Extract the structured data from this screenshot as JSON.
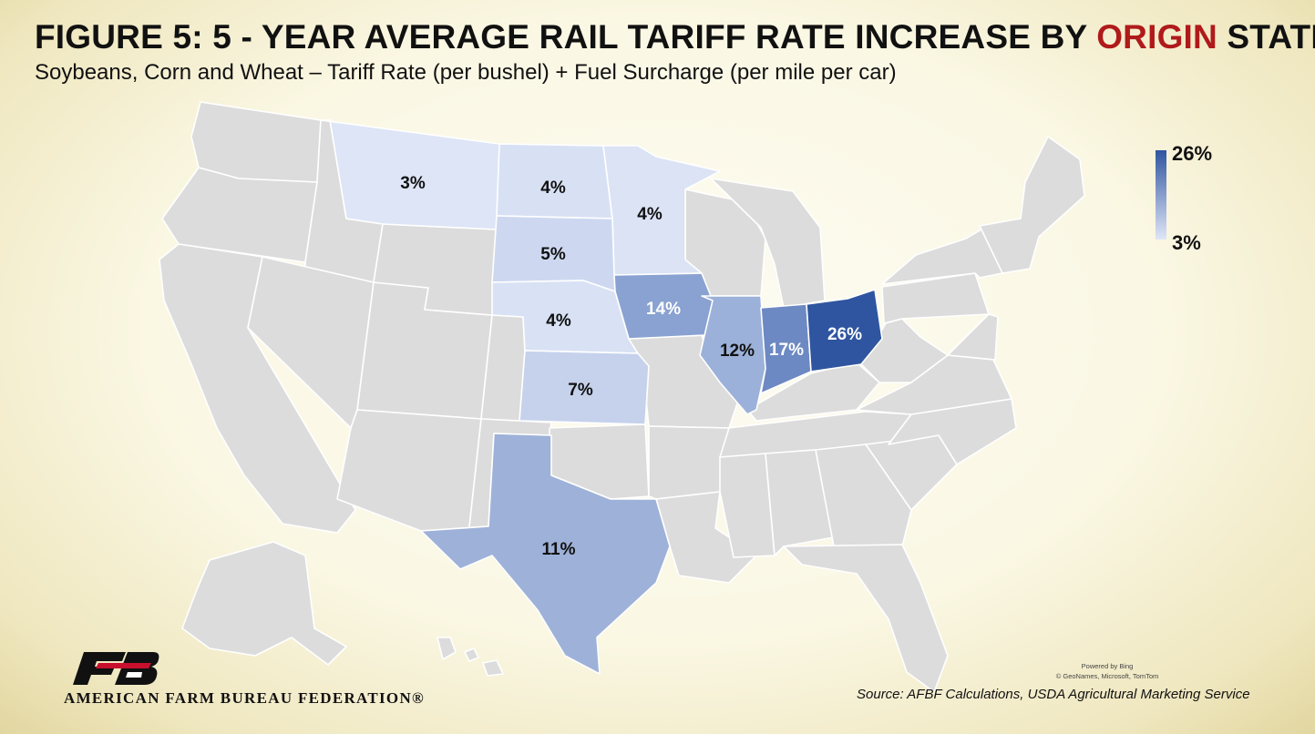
{
  "title": {
    "prefix": "FIGURE 5: 5 - YEAR AVERAGE RAIL TARIFF RATE INCREASE BY ",
    "highlight": "ORIGIN",
    "suffix": " STATE"
  },
  "subtitle": "Soybeans, Corn and Wheat – Tariff Rate (per bushel) + Fuel Surcharge (per mile per car)",
  "legend": {
    "max_label": "26%",
    "min_label": "3%",
    "max_color": "#2f55a0",
    "min_color": "#dfe6f7"
  },
  "colors": {
    "no_data": "#dcdcdc",
    "border": "#ffffff",
    "highlight_title": "#b01a1a"
  },
  "states": [
    {
      "id": "MT",
      "value": 3,
      "label": "3%",
      "color": "#dde5f6",
      "label_color": "#111111"
    },
    {
      "id": "ND",
      "value": 4,
      "label": "4%",
      "color": "#d8e1f4",
      "label_color": "#111111"
    },
    {
      "id": "MN",
      "value": 4,
      "label": "4%",
      "color": "#dbe3f5",
      "label_color": "#111111"
    },
    {
      "id": "SD",
      "value": 5,
      "label": "5%",
      "color": "#cdd8f0",
      "label_color": "#111111"
    },
    {
      "id": "NE",
      "value": 4,
      "label": "4%",
      "color": "#d9e2f4",
      "label_color": "#111111"
    },
    {
      "id": "KS",
      "value": 7,
      "label": "7%",
      "color": "#c6d2ec",
      "label_color": "#111111"
    },
    {
      "id": "IA",
      "value": 14,
      "label": "14%",
      "color": "#8aa2d1",
      "label_color": "#ffffff"
    },
    {
      "id": "IL",
      "value": 12,
      "label": "12%",
      "color": "#9cb1d9",
      "label_color": "#111111"
    },
    {
      "id": "IN",
      "value": 17,
      "label": "17%",
      "color": "#6d89c3",
      "label_color": "#ffffff"
    },
    {
      "id": "OH",
      "value": 26,
      "label": "26%",
      "color": "#2f55a0",
      "label_color": "#ffffff"
    },
    {
      "id": "TX",
      "value": 11,
      "label": "11%",
      "color": "#9eb1d8",
      "label_color": "#111111"
    }
  ],
  "attribution": {
    "line1": "Powered by Bing",
    "line2": "© GeoNames, Microsoft, TomTom"
  },
  "source": "Source: AFBF Calculations, USDA Agricultural Marketing Service",
  "organization": "AMERICAN FARM BUREAU FEDERATION®"
}
